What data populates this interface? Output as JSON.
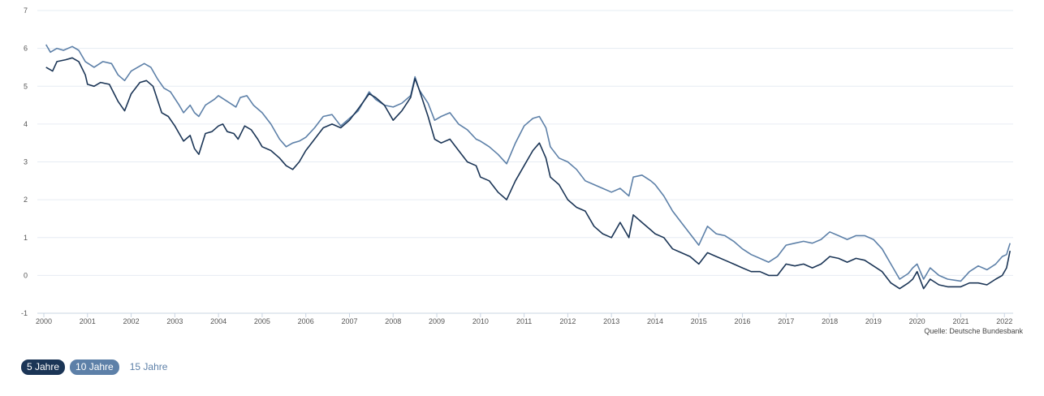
{
  "source": "Quelle: Deutsche Bundesbank",
  "toggles": {
    "five": "5 Jahre",
    "ten": "10 Jahre",
    "fifteen": "15 Jahre"
  },
  "colors": {
    "series_5": "#1b3556",
    "series_10": "#5d80a8",
    "grid": "#e6ecf3",
    "axis": "#c9d4e2"
  },
  "chart_data": {
    "type": "line",
    "title": "",
    "xlabel": "",
    "ylabel": "",
    "ylim": [
      -1,
      7
    ],
    "xlim": [
      2000.0,
      2022.2
    ],
    "yticks": [
      "-1",
      "0",
      "1",
      "2",
      "3",
      "4",
      "5",
      "6",
      "7"
    ],
    "xticks": [
      "2000",
      "2001",
      "2002",
      "2003",
      "2004",
      "2005",
      "2006",
      "2007",
      "2008",
      "2009",
      "2010",
      "2011",
      "2012",
      "2013",
      "2014",
      "2015",
      "2016",
      "2017",
      "2018",
      "2019",
      "2020",
      "2021",
      "2022"
    ],
    "grid": true,
    "series": [
      {
        "name": "5 Jahre",
        "points": [
          [
            2000.05,
            5.5
          ],
          [
            2000.2,
            5.4
          ],
          [
            2000.3,
            5.65
          ],
          [
            2000.5,
            5.7
          ],
          [
            2000.65,
            5.75
          ],
          [
            2000.8,
            5.65
          ],
          [
            2000.95,
            5.3
          ],
          [
            2001.0,
            5.05
          ],
          [
            2001.15,
            5.0
          ],
          [
            2001.3,
            5.1
          ],
          [
            2001.5,
            5.05
          ],
          [
            2001.7,
            4.6
          ],
          [
            2001.85,
            4.35
          ],
          [
            2002.0,
            4.8
          ],
          [
            2002.2,
            5.1
          ],
          [
            2002.35,
            5.15
          ],
          [
            2002.5,
            5.0
          ],
          [
            2002.7,
            4.3
          ],
          [
            2002.85,
            4.2
          ],
          [
            2003.0,
            3.95
          ],
          [
            2003.1,
            3.75
          ],
          [
            2003.2,
            3.55
          ],
          [
            2003.35,
            3.7
          ],
          [
            2003.45,
            3.35
          ],
          [
            2003.55,
            3.2
          ],
          [
            2003.7,
            3.75
          ],
          [
            2003.85,
            3.8
          ],
          [
            2004.0,
            3.95
          ],
          [
            2004.1,
            4.0
          ],
          [
            2004.2,
            3.8
          ],
          [
            2004.35,
            3.75
          ],
          [
            2004.45,
            3.6
          ],
          [
            2004.6,
            3.95
          ],
          [
            2004.75,
            3.85
          ],
          [
            2004.9,
            3.6
          ],
          [
            2005.0,
            3.4
          ],
          [
            2005.2,
            3.3
          ],
          [
            2005.4,
            3.1
          ],
          [
            2005.55,
            2.9
          ],
          [
            2005.7,
            2.8
          ],
          [
            2005.85,
            3.0
          ],
          [
            2006.0,
            3.3
          ],
          [
            2006.2,
            3.6
          ],
          [
            2006.4,
            3.9
          ],
          [
            2006.6,
            4.0
          ],
          [
            2006.8,
            3.9
          ],
          [
            2007.0,
            4.1
          ],
          [
            2007.2,
            4.4
          ],
          [
            2007.45,
            4.8
          ],
          [
            2007.6,
            4.7
          ],
          [
            2007.8,
            4.5
          ],
          [
            2008.0,
            4.1
          ],
          [
            2008.2,
            4.35
          ],
          [
            2008.4,
            4.7
          ],
          [
            2008.5,
            5.2
          ],
          [
            2008.6,
            4.9
          ],
          [
            2008.8,
            4.2
          ],
          [
            2008.95,
            3.6
          ],
          [
            2009.1,
            3.5
          ],
          [
            2009.3,
            3.6
          ],
          [
            2009.5,
            3.3
          ],
          [
            2009.7,
            3.0
          ],
          [
            2009.9,
            2.9
          ],
          [
            2010.0,
            2.6
          ],
          [
            2010.2,
            2.5
          ],
          [
            2010.4,
            2.2
          ],
          [
            2010.6,
            2.0
          ],
          [
            2010.8,
            2.5
          ],
          [
            2011.0,
            2.9
          ],
          [
            2011.2,
            3.3
          ],
          [
            2011.35,
            3.5
          ],
          [
            2011.5,
            3.1
          ],
          [
            2011.6,
            2.6
          ],
          [
            2011.8,
            2.4
          ],
          [
            2012.0,
            2.0
          ],
          [
            2012.2,
            1.8
          ],
          [
            2012.4,
            1.7
          ],
          [
            2012.6,
            1.3
          ],
          [
            2012.8,
            1.1
          ],
          [
            2013.0,
            1.0
          ],
          [
            2013.2,
            1.4
          ],
          [
            2013.4,
            1.0
          ],
          [
            2013.5,
            1.6
          ],
          [
            2013.7,
            1.4
          ],
          [
            2013.9,
            1.2
          ],
          [
            2014.0,
            1.1
          ],
          [
            2014.2,
            1.0
          ],
          [
            2014.4,
            0.7
          ],
          [
            2014.6,
            0.6
          ],
          [
            2014.8,
            0.5
          ],
          [
            2015.0,
            0.3
          ],
          [
            2015.2,
            0.6
          ],
          [
            2015.4,
            0.5
          ],
          [
            2015.6,
            0.4
          ],
          [
            2015.8,
            0.3
          ],
          [
            2016.0,
            0.2
          ],
          [
            2016.2,
            0.1
          ],
          [
            2016.4,
            0.1
          ],
          [
            2016.6,
            0.0
          ],
          [
            2016.8,
            0.0
          ],
          [
            2017.0,
            0.3
          ],
          [
            2017.2,
            0.25
          ],
          [
            2017.4,
            0.3
          ],
          [
            2017.6,
            0.2
          ],
          [
            2017.8,
            0.3
          ],
          [
            2018.0,
            0.5
          ],
          [
            2018.2,
            0.45
          ],
          [
            2018.4,
            0.35
          ],
          [
            2018.6,
            0.45
          ],
          [
            2018.8,
            0.4
          ],
          [
            2019.0,
            0.25
          ],
          [
            2019.2,
            0.1
          ],
          [
            2019.4,
            -0.2
          ],
          [
            2019.6,
            -0.35
          ],
          [
            2019.8,
            -0.2
          ],
          [
            2019.9,
            -0.1
          ],
          [
            2020.0,
            0.1
          ],
          [
            2020.15,
            -0.35
          ],
          [
            2020.3,
            -0.1
          ],
          [
            2020.5,
            -0.25
          ],
          [
            2020.7,
            -0.3
          ],
          [
            2021.0,
            -0.3
          ],
          [
            2021.2,
            -0.2
          ],
          [
            2021.4,
            -0.2
          ],
          [
            2021.6,
            -0.25
          ],
          [
            2021.8,
            -0.1
          ],
          [
            2021.95,
            0.0
          ],
          [
            2022.05,
            0.2
          ],
          [
            2022.13,
            0.65
          ]
        ]
      },
      {
        "name": "10 Jahre",
        "points": [
          [
            2000.05,
            6.1
          ],
          [
            2000.15,
            5.9
          ],
          [
            2000.3,
            6.0
          ],
          [
            2000.45,
            5.95
          ],
          [
            2000.65,
            6.05
          ],
          [
            2000.8,
            5.95
          ],
          [
            2000.95,
            5.65
          ],
          [
            2001.15,
            5.5
          ],
          [
            2001.35,
            5.65
          ],
          [
            2001.55,
            5.6
          ],
          [
            2001.7,
            5.3
          ],
          [
            2001.85,
            5.15
          ],
          [
            2002.0,
            5.4
          ],
          [
            2002.15,
            5.5
          ],
          [
            2002.3,
            5.6
          ],
          [
            2002.45,
            5.5
          ],
          [
            2002.6,
            5.2
          ],
          [
            2002.75,
            4.95
          ],
          [
            2002.9,
            4.85
          ],
          [
            2003.1,
            4.5
          ],
          [
            2003.2,
            4.3
          ],
          [
            2003.35,
            4.5
          ],
          [
            2003.45,
            4.3
          ],
          [
            2003.55,
            4.2
          ],
          [
            2003.7,
            4.5
          ],
          [
            2003.9,
            4.65
          ],
          [
            2004.0,
            4.75
          ],
          [
            2004.2,
            4.6
          ],
          [
            2004.4,
            4.45
          ],
          [
            2004.5,
            4.7
          ],
          [
            2004.65,
            4.75
          ],
          [
            2004.8,
            4.5
          ],
          [
            2005.0,
            4.3
          ],
          [
            2005.2,
            4.0
          ],
          [
            2005.4,
            3.6
          ],
          [
            2005.55,
            3.4
          ],
          [
            2005.7,
            3.5
          ],
          [
            2005.85,
            3.55
          ],
          [
            2006.0,
            3.65
          ],
          [
            2006.2,
            3.9
          ],
          [
            2006.4,
            4.2
          ],
          [
            2006.6,
            4.25
          ],
          [
            2006.8,
            3.95
          ],
          [
            2007.0,
            4.15
          ],
          [
            2007.2,
            4.35
          ],
          [
            2007.45,
            4.85
          ],
          [
            2007.6,
            4.65
          ],
          [
            2007.8,
            4.5
          ],
          [
            2008.0,
            4.45
          ],
          [
            2008.2,
            4.55
          ],
          [
            2008.4,
            4.75
          ],
          [
            2008.5,
            5.25
          ],
          [
            2008.6,
            4.9
          ],
          [
            2008.8,
            4.55
          ],
          [
            2008.95,
            4.1
          ],
          [
            2009.1,
            4.2
          ],
          [
            2009.3,
            4.3
          ],
          [
            2009.5,
            4.0
          ],
          [
            2009.7,
            3.85
          ],
          [
            2009.9,
            3.6
          ],
          [
            2010.0,
            3.55
          ],
          [
            2010.2,
            3.4
          ],
          [
            2010.4,
            3.2
          ],
          [
            2010.6,
            2.95
          ],
          [
            2010.8,
            3.5
          ],
          [
            2011.0,
            3.95
          ],
          [
            2011.2,
            4.15
          ],
          [
            2011.35,
            4.2
          ],
          [
            2011.5,
            3.9
          ],
          [
            2011.6,
            3.4
          ],
          [
            2011.8,
            3.1
          ],
          [
            2012.0,
            3.0
          ],
          [
            2012.2,
            2.8
          ],
          [
            2012.4,
            2.5
          ],
          [
            2012.6,
            2.4
          ],
          [
            2012.8,
            2.3
          ],
          [
            2013.0,
            2.2
          ],
          [
            2013.2,
            2.3
          ],
          [
            2013.4,
            2.1
          ],
          [
            2013.5,
            2.6
          ],
          [
            2013.7,
            2.65
          ],
          [
            2013.9,
            2.5
          ],
          [
            2014.0,
            2.4
          ],
          [
            2014.2,
            2.1
          ],
          [
            2014.4,
            1.7
          ],
          [
            2014.6,
            1.4
          ],
          [
            2014.8,
            1.1
          ],
          [
            2015.0,
            0.8
          ],
          [
            2015.2,
            1.3
          ],
          [
            2015.4,
            1.1
          ],
          [
            2015.6,
            1.05
          ],
          [
            2015.8,
            0.9
          ],
          [
            2016.0,
            0.7
          ],
          [
            2016.2,
            0.55
          ],
          [
            2016.4,
            0.45
          ],
          [
            2016.6,
            0.35
          ],
          [
            2016.8,
            0.5
          ],
          [
            2017.0,
            0.8
          ],
          [
            2017.2,
            0.85
          ],
          [
            2017.4,
            0.9
          ],
          [
            2017.6,
            0.85
          ],
          [
            2017.8,
            0.95
          ],
          [
            2018.0,
            1.15
          ],
          [
            2018.2,
            1.05
          ],
          [
            2018.4,
            0.95
          ],
          [
            2018.6,
            1.05
          ],
          [
            2018.8,
            1.05
          ],
          [
            2019.0,
            0.95
          ],
          [
            2019.2,
            0.7
          ],
          [
            2019.4,
            0.3
          ],
          [
            2019.6,
            -0.1
          ],
          [
            2019.8,
            0.05
          ],
          [
            2019.9,
            0.2
          ],
          [
            2020.0,
            0.3
          ],
          [
            2020.15,
            -0.1
          ],
          [
            2020.3,
            0.2
          ],
          [
            2020.5,
            0.0
          ],
          [
            2020.7,
            -0.1
          ],
          [
            2021.0,
            -0.15
          ],
          [
            2021.2,
            0.1
          ],
          [
            2021.4,
            0.25
          ],
          [
            2021.6,
            0.15
          ],
          [
            2021.8,
            0.3
          ],
          [
            2021.95,
            0.5
          ],
          [
            2022.05,
            0.55
          ],
          [
            2022.13,
            0.85
          ]
        ]
      }
    ]
  }
}
